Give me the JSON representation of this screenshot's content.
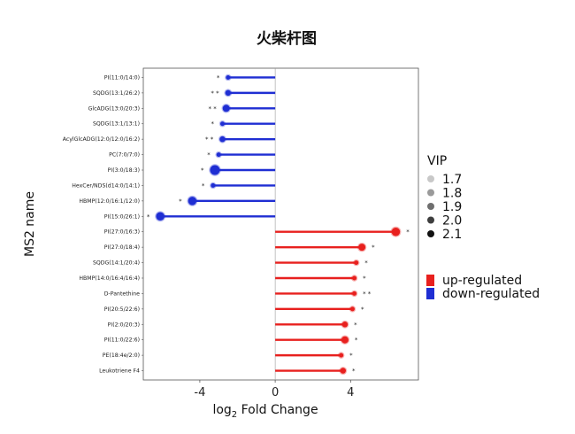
{
  "chart_data": {
    "type": "lollipop",
    "title": "火柴杆图",
    "xlabel_main": "log",
    "xlabel_sub": "2",
    "xlabel_rest": " Fold Change",
    "ylabel": "MS2 name",
    "xlim": [
      -7,
      7.6
    ],
    "xticks": [
      "-4",
      "0",
      "4"
    ],
    "xtick_values": [
      -4,
      0,
      4
    ],
    "colors": {
      "up": "#e8201e",
      "down": "#1f2ed3"
    },
    "rows": [
      {
        "name": "PI(11:0/14:0)",
        "fc": -2.5,
        "vip": 1.7,
        "sig": "*"
      },
      {
        "name": "SQDG(13:1/26:2)",
        "fc": -2.5,
        "vip": 1.8,
        "sig": "* *"
      },
      {
        "name": "GlcADG(13:0/20:3)",
        "fc": -2.6,
        "vip": 1.9,
        "sig": "* *"
      },
      {
        "name": "SQDG(13:1/13:1)",
        "fc": -2.8,
        "vip": 1.7,
        "sig": "*"
      },
      {
        "name": "AcylGlcADG(12:0/12:0/16:2)",
        "fc": -2.8,
        "vip": 1.8,
        "sig": "* *"
      },
      {
        "name": "PC(7:0/7:0)",
        "fc": -3.0,
        "vip": 1.7,
        "sig": "*"
      },
      {
        "name": "PI(3:0/18:3)",
        "fc": -3.2,
        "vip": 2.1,
        "sig": "*"
      },
      {
        "name": "HexCer/NDS(d14:0/14:1)",
        "fc": -3.3,
        "vip": 1.7,
        "sig": "*"
      },
      {
        "name": "HBMP(12:0/16:1/12:0)",
        "fc": -4.4,
        "vip": 2.0,
        "sig": "*"
      },
      {
        "name": "PI(15:0/26:1)",
        "fc": -6.1,
        "vip": 2.0,
        "sig": "*"
      },
      {
        "name": "PI(27:0/16:3)",
        "fc": 6.4,
        "vip": 2.0,
        "sig": "*"
      },
      {
        "name": "PI(27:0/18:4)",
        "fc": 4.6,
        "vip": 1.9,
        "sig": "*"
      },
      {
        "name": "SQDG(14:1/20:4)",
        "fc": 4.3,
        "vip": 1.7,
        "sig": "*"
      },
      {
        "name": "HBMP(14:0/16:4/16:4)",
        "fc": 4.2,
        "vip": 1.7,
        "sig": "*"
      },
      {
        "name": "D-Pantethine",
        "fc": 4.2,
        "vip": 1.7,
        "sig": "* *"
      },
      {
        "name": "PI(20:5/22:6)",
        "fc": 4.1,
        "vip": 1.7,
        "sig": "*"
      },
      {
        "name": "PI(2:0/20:3)",
        "fc": 3.7,
        "vip": 1.8,
        "sig": "*"
      },
      {
        "name": "PI(11:0/22:6)",
        "fc": 3.7,
        "vip": 1.9,
        "sig": "*"
      },
      {
        "name": "PE(18:4e/2:0)",
        "fc": 3.5,
        "vip": 1.7,
        "sig": "*"
      },
      {
        "name": "Leukotriene F4",
        "fc": 3.6,
        "vip": 1.8,
        "sig": "*"
      }
    ],
    "vip_legend": {
      "title": "VIP",
      "levels": [
        {
          "label": "1.7",
          "value": 1.7,
          "color": "#c8c8c8"
        },
        {
          "label": "1.8",
          "value": 1.8,
          "color": "#9a9a9a"
        },
        {
          "label": "1.9",
          "value": 1.9,
          "color": "#6e6e6e"
        },
        {
          "label": "2.0",
          "value": 2.0,
          "color": "#3e3e3e"
        },
        {
          "label": "2.1",
          "value": 2.1,
          "color": "#111111"
        }
      ]
    },
    "regulation_legend": [
      {
        "label": "up-regulated",
        "color": "#e8201e"
      },
      {
        "label": "down-regulated",
        "color": "#1f2ed3"
      }
    ]
  }
}
